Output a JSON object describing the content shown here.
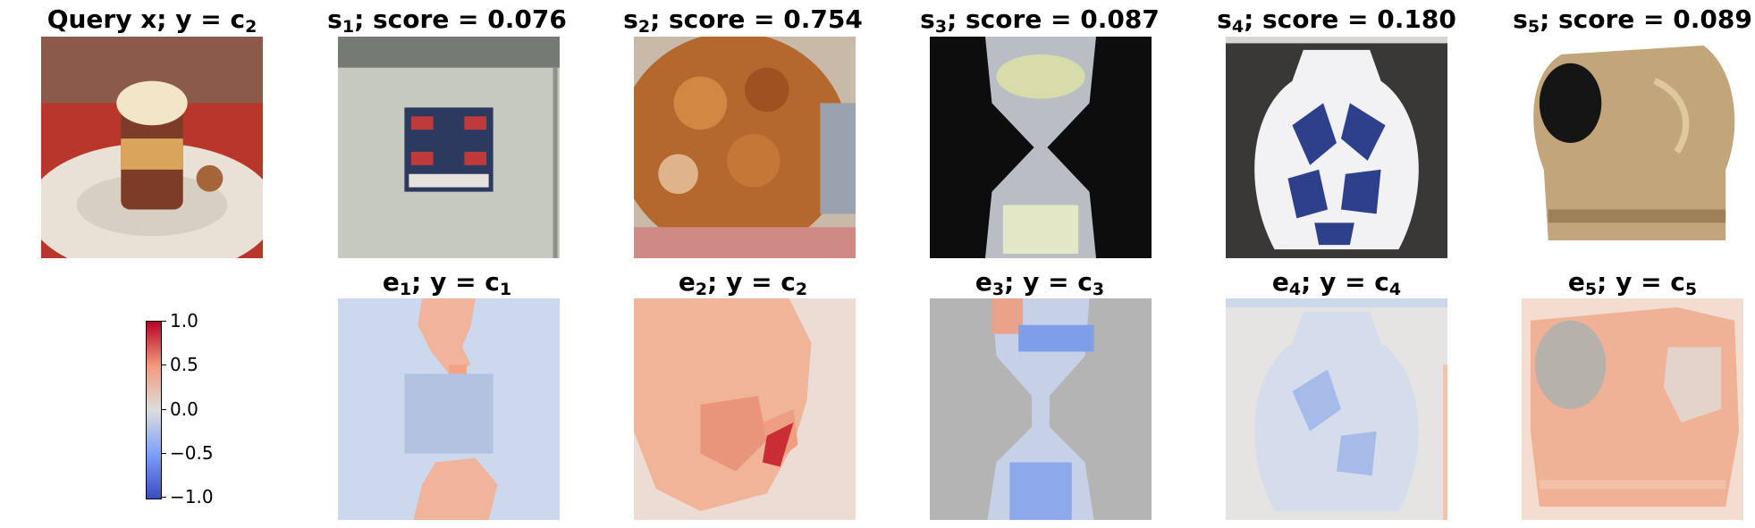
{
  "top_row": [
    {
      "prefix": "Query x; y",
      "sym": "c",
      "sub": "2",
      "rest": ""
    },
    {
      "prefix": "s",
      "sub": "1",
      "rest": "; score = 0.076"
    },
    {
      "prefix": "s",
      "sub": "2",
      "rest": "; score = 0.754"
    },
    {
      "prefix": "s",
      "sub": "3",
      "rest": "; score = 0.087"
    },
    {
      "prefix": "s",
      "sub": "4",
      "rest": "; score = 0.180"
    },
    {
      "prefix": "s",
      "sub": "5",
      "rest": "; score = 0.089"
    }
  ],
  "bottom_row": [
    {
      "e": "e",
      "esub": "1",
      "mid": "; y = c",
      "csub": "1"
    },
    {
      "e": "e",
      "esub": "2",
      "mid": "; y = c",
      "csub": "2"
    },
    {
      "e": "e",
      "esub": "3",
      "mid": "; y = c",
      "csub": "3"
    },
    {
      "e": "e",
      "esub": "4",
      "mid": "; y = c",
      "csub": "4"
    },
    {
      "e": "e",
      "esub": "5",
      "mid": "; y = c",
      "csub": "5"
    }
  ],
  "colorbar": {
    "ticks": [
      "1.0",
      "0.5",
      "0.0",
      "−0.5",
      "−1.0"
    ],
    "colors": {
      "low": "#3b4cc0",
      "mid": "#dddddd",
      "high": "#b40426"
    }
  },
  "images": [
    "dessert-photo",
    "scoreboard-photo",
    "trifle-photo",
    "hourglass-photo",
    "vase-photo",
    "armor-photo"
  ]
}
